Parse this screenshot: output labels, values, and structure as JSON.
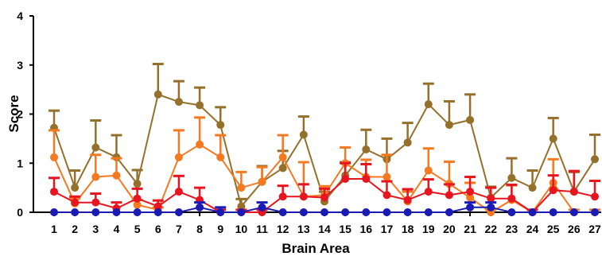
{
  "chart_data": {
    "type": "line",
    "xlabel": "Brain Area",
    "ylabel": "Score",
    "ylim": [
      0,
      4
    ],
    "yticks": [
      0,
      1,
      2,
      3,
      4
    ],
    "x": [
      1,
      2,
      3,
      4,
      5,
      6,
      7,
      8,
      9,
      10,
      11,
      12,
      13,
      14,
      15,
      16,
      17,
      18,
      19,
      20,
      21,
      22,
      23,
      24,
      25,
      26,
      27
    ],
    "grid": false,
    "legend": "none",
    "series": [
      {
        "color": "#94702B",
        "marker": "circle",
        "values": [
          1.72,
          0.5,
          1.32,
          1.12,
          0.58,
          2.4,
          2.25,
          2.18,
          1.78,
          0.12,
          0.62,
          0.9,
          1.58,
          0.22,
          0.75,
          1.28,
          1.08,
          1.42,
          2.2,
          1.78,
          1.88,
          0.3,
          0.7,
          0.5,
          1.5,
          0.42,
          1.08
        ],
        "error": [
          0.35,
          0.35,
          0.55,
          0.45,
          0.28,
          0.62,
          0.42,
          0.36,
          0.36,
          0.15,
          0.32,
          0.35,
          0.37,
          0.2,
          0.27,
          0.4,
          0.42,
          0.4,
          0.42,
          0.48,
          0.52,
          0.22,
          0.4,
          0.35,
          0.42,
          0.4,
          0.5
        ]
      },
      {
        "color": "#F47920",
        "marker": "circle",
        "values": [
          1.12,
          0.18,
          0.72,
          0.75,
          0.15,
          0.05,
          1.12,
          1.38,
          1.12,
          0.5,
          0.62,
          1.12,
          0.32,
          0.35,
          1.0,
          0.72,
          0.72,
          0.22,
          0.85,
          0.58,
          0.3,
          0.0,
          0.25,
          0.0,
          0.6,
          0.0,
          0.0
        ],
        "error": [
          0.55,
          0.1,
          0.45,
          0.35,
          0.1,
          0.05,
          0.55,
          0.55,
          0.45,
          0.32,
          0.3,
          0.45,
          0.7,
          0.18,
          0.32,
          0.35,
          0.45,
          0.2,
          0.45,
          0.45,
          0.3,
          0.05,
          0.3,
          0.05,
          0.48,
          0.05,
          0.05
        ]
      },
      {
        "color": "#E8141E",
        "marker": "circle",
        "values": [
          0.42,
          0.2,
          0.2,
          0.08,
          0.28,
          0.12,
          0.42,
          0.25,
          0.0,
          0.0,
          0.0,
          0.32,
          0.32,
          0.3,
          0.68,
          0.68,
          0.35,
          0.25,
          0.42,
          0.35,
          0.42,
          0.28,
          0.28,
          0.0,
          0.45,
          0.42,
          0.32
        ],
        "error": [
          0.28,
          0.12,
          0.18,
          0.12,
          0.2,
          0.12,
          0.32,
          0.25,
          0.05,
          0.05,
          0.05,
          0.22,
          0.25,
          0.18,
          0.32,
          0.3,
          0.28,
          0.22,
          0.25,
          0.22,
          0.3,
          0.22,
          0.28,
          0.05,
          0.3,
          0.42,
          0.32
        ]
      },
      {
        "color": "#1A1AB4",
        "marker": "circle",
        "values": [
          0,
          0,
          0,
          0,
          0,
          0,
          0,
          0.1,
          0,
          0,
          0.1,
          0,
          0,
          0,
          0,
          0,
          0,
          0,
          0,
          0,
          0.1,
          0.1,
          0,
          0,
          0,
          0,
          0
        ],
        "error": [
          0,
          0,
          0,
          0,
          0,
          0,
          0,
          0.1,
          0.1,
          0,
          0.1,
          0,
          0,
          0,
          0,
          0,
          0,
          0,
          0,
          0,
          0.1,
          0.1,
          0,
          0,
          0,
          0,
          0
        ]
      }
    ]
  }
}
